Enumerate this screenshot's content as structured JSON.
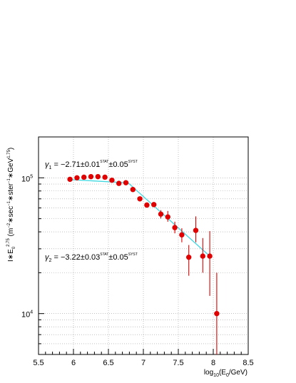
{
  "chart_data": {
    "type": "scatter",
    "title": "",
    "xlabel": "log10(E0/GeV)",
    "ylabel": "I*E0^2.75 (m^-2*sec^-1*ster^-1*GeV^1.75)",
    "x_scale": "linear",
    "y_scale": "log",
    "xlim": [
      5.5,
      8.5
    ],
    "ylim": [
      5000,
      200000
    ],
    "grid": true,
    "x_ticks": [
      5.5,
      6,
      6.5,
      7,
      7.5,
      8,
      8.5
    ],
    "x_tick_labels": [
      "5.5",
      "6",
      "6.5",
      "7",
      "7.5",
      "8",
      "8.5"
    ],
    "y_tick_labels": [
      {
        "value": 100000,
        "base": "10",
        "exp": "5"
      },
      {
        "value": 10000,
        "base": "10",
        "exp": "4"
      }
    ],
    "series": [
      {
        "marker": "circle",
        "color": "#e00000",
        "x": [
          5.95,
          6.05,
          6.15,
          6.25,
          6.35,
          6.45,
          6.55,
          6.65,
          6.75,
          6.85,
          6.95,
          7.05,
          7.15,
          7.25,
          7.35,
          7.45,
          7.55,
          7.65,
          7.75,
          7.85,
          7.95,
          8.05
        ],
        "y": [
          97500,
          100000,
          101000,
          102000,
          102000,
          101000,
          96000,
          91000,
          92000,
          82000,
          70000,
          63000,
          63500,
          54000,
          51500,
          43000,
          38000,
          26000,
          41000,
          26500,
          26500,
          10000
        ],
        "y_err_low": [
          0,
          0,
          0,
          0,
          0,
          0,
          0,
          0,
          0,
          0,
          0,
          0,
          0,
          3800,
          4000,
          4000,
          4500,
          7000,
          7500,
          6500,
          13000,
          5000
        ],
        "y_err_high": [
          0,
          0,
          0,
          0,
          0,
          0,
          0,
          0,
          0,
          0,
          0,
          0,
          0,
          3800,
          5500,
          4500,
          4500,
          6000,
          11000,
          9500,
          14000,
          10000
        ]
      }
    ],
    "fits": [
      {
        "color": "#3fd8e0",
        "x": [
          5.95,
          6.75
        ],
        "y": [
          97000,
          92000
        ]
      },
      {
        "color": "#3fd8e0",
        "x": [
          6.75,
          7.95
        ],
        "y": [
          95000,
          26500
        ]
      }
    ],
    "annotations": [
      {
        "symbol": "γ",
        "sub": "1",
        "main": " = −2.71±0.01",
        "sup1": "STAT",
        "mid": "±0.05",
        "sup2": "SYST"
      },
      {
        "symbol": "γ",
        "sub": "2",
        "main": " = −3.22±0.03",
        "sup1": "STAT",
        "mid": "±0.05",
        "sup2": "SYST"
      }
    ],
    "axis_text": {
      "x_pre": "log",
      "x_sub": "10",
      "x_mid": "(E",
      "x_sub2": "0",
      "x_post": "/GeV)",
      "y_pre": "I∗E",
      "y_sub": "0",
      "y_sup": "2.75",
      "y_mid": " (m",
      "y_sup2": "−2",
      "y_mid2": "∗sec",
      "y_sup3": "−1",
      "y_mid3": "∗ster",
      "y_sup4": "−1",
      "y_mid4": "∗GeV",
      "y_sup5": "1.75",
      "y_post": ")"
    }
  }
}
